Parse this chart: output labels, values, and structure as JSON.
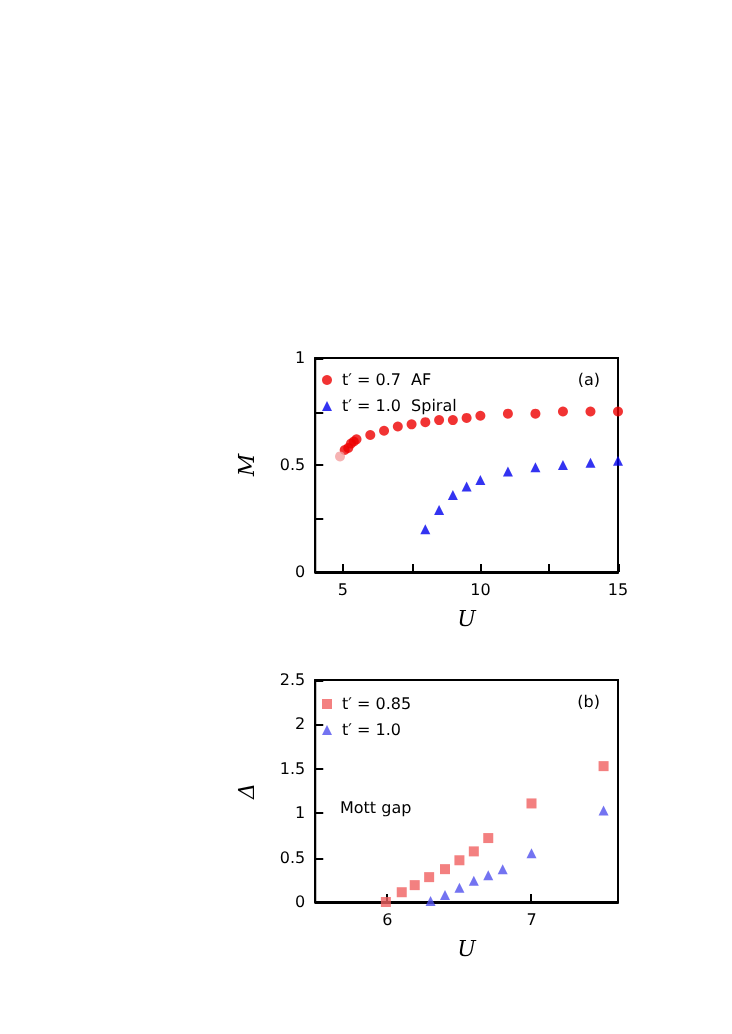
{
  "chart_data": [
    {
      "type": "scatter",
      "xlabel": "U",
      "ylabel": "M",
      "xlim": [
        4,
        15
      ],
      "ylim": [
        0,
        1
      ],
      "xticks": [
        5,
        {
          "value": 7.5,
          "label": null
        },
        10,
        {
          "value": 12.5,
          "label": null
        },
        15
      ],
      "yticks": [
        0,
        {
          "value": 0.25,
          "label": null
        },
        0.5,
        {
          "value": 0.75,
          "label": null
        },
        1
      ],
      "legend": "top left",
      "grid": false,
      "annotations": [
        "(a)"
      ],
      "series": [
        {
          "name": "t′ = 0.7  AF",
          "color": "#ee0000",
          "marker": "circle",
          "x": [
            5.07,
            5.2,
            5.3,
            5.4,
            5.5,
            6,
            6.5,
            7,
            7.5,
            8,
            8.5,
            9,
            9.5,
            10,
            11,
            12,
            13,
            14,
            15
          ],
          "values": [
            0.57,
            0.58,
            0.6,
            0.61,
            0.62,
            0.64,
            0.66,
            0.68,
            0.69,
            0.7,
            0.71,
            0.71,
            0.72,
            0.73,
            0.74,
            0.74,
            0.75,
            0.75,
            0.75
          ]
        },
        {
          "name": "t′ = 1.0  Spiral",
          "color": "#0000ee",
          "marker": "triangle",
          "x": [
            8,
            8.5,
            9,
            9.5,
            10,
            11,
            12,
            13,
            14,
            15
          ],
          "values": [
            0.2,
            0.29,
            0.36,
            0.4,
            0.43,
            0.47,
            0.49,
            0.5,
            0.51,
            0.52
          ]
        },
        {
          "color": "#f4a0a0",
          "marker": "circle",
          "x": [
            4.9
          ],
          "values": [
            0.54
          ]
        }
      ]
    },
    {
      "type": "scatter",
      "xlabel": "U",
      "ylabel": "Δ",
      "xlim": [
        5.5,
        7.6
      ],
      "ylim": [
        0,
        2.5
      ],
      "xticks": [
        6,
        7
      ],
      "yticks": [
        0,
        0.5,
        1,
        1.5,
        2,
        2.5
      ],
      "legend": "top left",
      "grid": false,
      "annotations": [
        "(b)",
        "Mott gap"
      ],
      "series": [
        {
          "name": "t′ = 0.85",
          "color": "#f06060",
          "marker": "square",
          "x": [
            5.99,
            6.1,
            6.19,
            6.29,
            6.4,
            6.5,
            6.6,
            6.7,
            7.0,
            7.5
          ],
          "values": [
            0,
            0.11,
            0.19,
            0.28,
            0.37,
            0.47,
            0.57,
            0.72,
            1.11,
            1.53
          ]
        },
        {
          "name": "t′ = 1.0",
          "color": "#5050ee",
          "marker": "triangle",
          "x": [
            6.3,
            6.4,
            6.5,
            6.6,
            6.7,
            6.8,
            7.0,
            7.5
          ],
          "values": [
            0.01,
            0.08,
            0.16,
            0.24,
            0.3,
            0.37,
            0.55,
            1.03
          ]
        }
      ]
    }
  ]
}
